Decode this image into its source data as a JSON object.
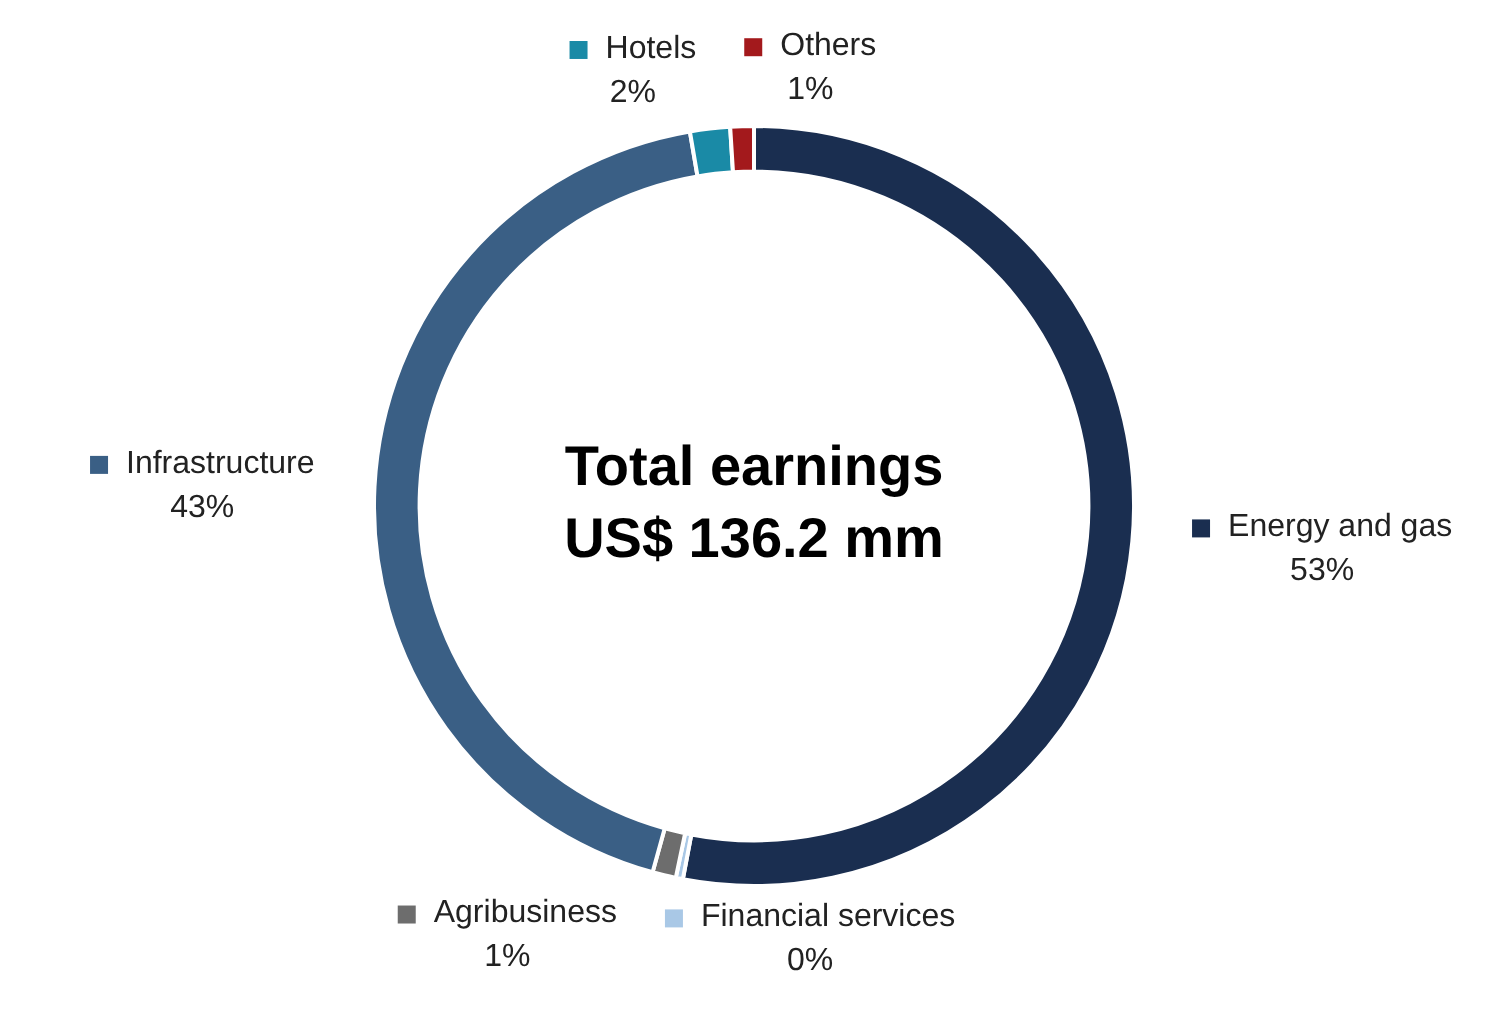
{
  "chart_data": {
    "type": "donut",
    "categories": [
      "Energy and gas",
      "Financial services",
      "Agribusiness",
      "Infrastructure",
      "Hotels",
      "Others"
    ],
    "values": [
      53,
      0.3,
      1,
      43,
      1.7,
      1
    ],
    "value_labels": [
      "53%",
      "0%",
      "1%",
      "43%",
      "2%",
      "1%"
    ],
    "colors": [
      "#1a2e50",
      "#a9c8e6",
      "#6d6d6d",
      "#3a5f85",
      "#1a8aa6",
      "#a3191c"
    ],
    "annotations": [
      "Total earnings",
      "US$ 136.2 mm"
    ],
    "legend": "right"
  }
}
